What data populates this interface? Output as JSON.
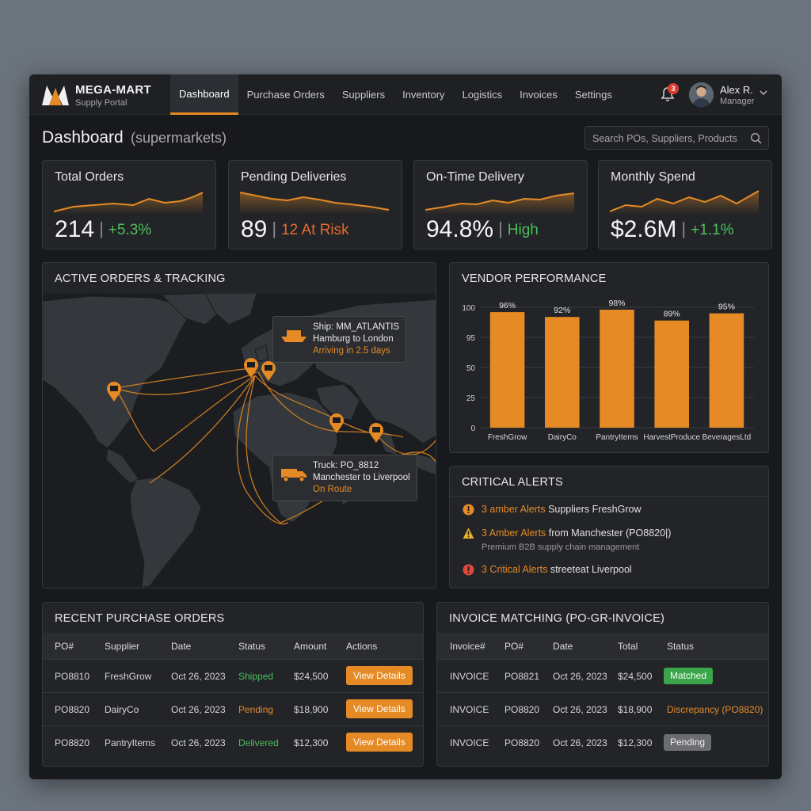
{
  "brand": {
    "name": "MEGA-MART",
    "sub": "Supply Portal"
  },
  "nav": [
    {
      "label": "Dashboard",
      "active": true
    },
    {
      "label": "Purchase Orders"
    },
    {
      "label": "Suppliers"
    },
    {
      "label": "Inventory"
    },
    {
      "label": "Logistics"
    },
    {
      "label": "Invoices"
    },
    {
      "label": "Settings"
    }
  ],
  "notifications": {
    "count": "3",
    "icon": "bell-icon"
  },
  "user": {
    "name": "Alex R.",
    "role": "Manager"
  },
  "page": {
    "title": "Dashboard",
    "subtitle": "(supermarkets)"
  },
  "search": {
    "placeholder": "Search POs, Suppliers, Products",
    "value": ""
  },
  "kpis": [
    {
      "label": "Total Orders",
      "value": "214",
      "change": "+5.3%",
      "change_color": "#4cbf5a"
    },
    {
      "label": "Pending Deliveries",
      "value": "89",
      "change": "12 At Risk",
      "change_color": "#e56a2f"
    },
    {
      "label": "On-Time Delivery",
      "value": "94.8%",
      "change": "High",
      "change_color": "#4cbf5a"
    },
    {
      "label": "Monthly Spend",
      "value": "$2.6M",
      "change": "+1.1%",
      "change_color": "#4cbf5a"
    }
  ],
  "tracking": {
    "title": "ACTIVE ORDERS & TRACKING",
    "ship": {
      "line1": "Ship: MM_ATLANTIS",
      "line2": "Hamburg to London",
      "line3": "Arriving in 2.5 days"
    },
    "truck": {
      "line1": "Truck: PO_8812",
      "line2": "Manchester to Liverpool",
      "line3": "On Route"
    }
  },
  "vendor": {
    "title": "VENDOR PERFORMANCE"
  },
  "chart_data": {
    "type": "bar",
    "categories": [
      "FreshGrow",
      "DairyCo",
      "PantryItems",
      "HarvestProduce",
      "BeveragesLtd"
    ],
    "values": [
      96,
      92,
      98,
      89,
      95
    ],
    "data_labels": [
      "96%",
      "92%",
      "98%",
      "89%",
      "95%"
    ],
    "y_ticks": [
      "100",
      "95",
      "50",
      "25",
      "0"
    ],
    "title": "",
    "xlabel": "",
    "ylabel": "",
    "bar_color": "#e58a24",
    "grid": true
  },
  "alerts": {
    "title": "CRITICAL ALERTS",
    "items": [
      {
        "highlight": "3 amber Alerts",
        "rest": " Suppliers FreshGrow",
        "sub": "",
        "level": "amber"
      },
      {
        "highlight": "3 Amber Alerts",
        "rest": " from Manchester (PO8820|)",
        "sub": "Premium B2B supply chain management",
        "level": "warning"
      },
      {
        "highlight": "3 Critical Alerts",
        "rest": " streeteat Liverpool",
        "sub": "",
        "level": "critical"
      }
    ]
  },
  "orders": {
    "title": "RECENT PURCHASE ORDERS",
    "columns": [
      "PO#",
      "Supplier",
      "Date",
      "Status",
      "Amount",
      "Actions"
    ],
    "rows": [
      {
        "po": "PO8810",
        "supplier": "FreshGrow",
        "date": "Oct 26, 2023",
        "status": "Shipped",
        "amount": "$24,500",
        "action": "View Details"
      },
      {
        "po": "PO8820",
        "supplier": "DairyCo",
        "date": "Oct 26, 2023",
        "status": "Pending",
        "amount": "$18,900",
        "action": "View Details"
      },
      {
        "po": "PO8820",
        "supplier": "PantryItems",
        "date": "Oct 26, 2023",
        "status": "Delivered",
        "amount": "$12,300",
        "action": "View Details"
      }
    ]
  },
  "invoices": {
    "title": "INVOICE MATCHING (PO-GR-INVOICE)",
    "columns": [
      "Invoice#",
      "PO#",
      "Date",
      "Total",
      "Status"
    ],
    "rows": [
      {
        "invoice": "INVOICE",
        "po": "PO8821",
        "date": "Oct 26, 2023",
        "total": "$24,500",
        "status": "Matched"
      },
      {
        "invoice": "INVOICE",
        "po": "PO8820",
        "date": "Oct 26, 2023",
        "total": "$18,900",
        "status": "Discrepancy (PO8820)"
      },
      {
        "invoice": "INVOICE",
        "po": "PO8820",
        "date": "Oct 26, 2023",
        "total": "$12,300",
        "status": "Pending"
      }
    ]
  },
  "colors": {
    "accent": "#e58a24",
    "success": "#4cbf5a",
    "danger": "#e0483a"
  }
}
